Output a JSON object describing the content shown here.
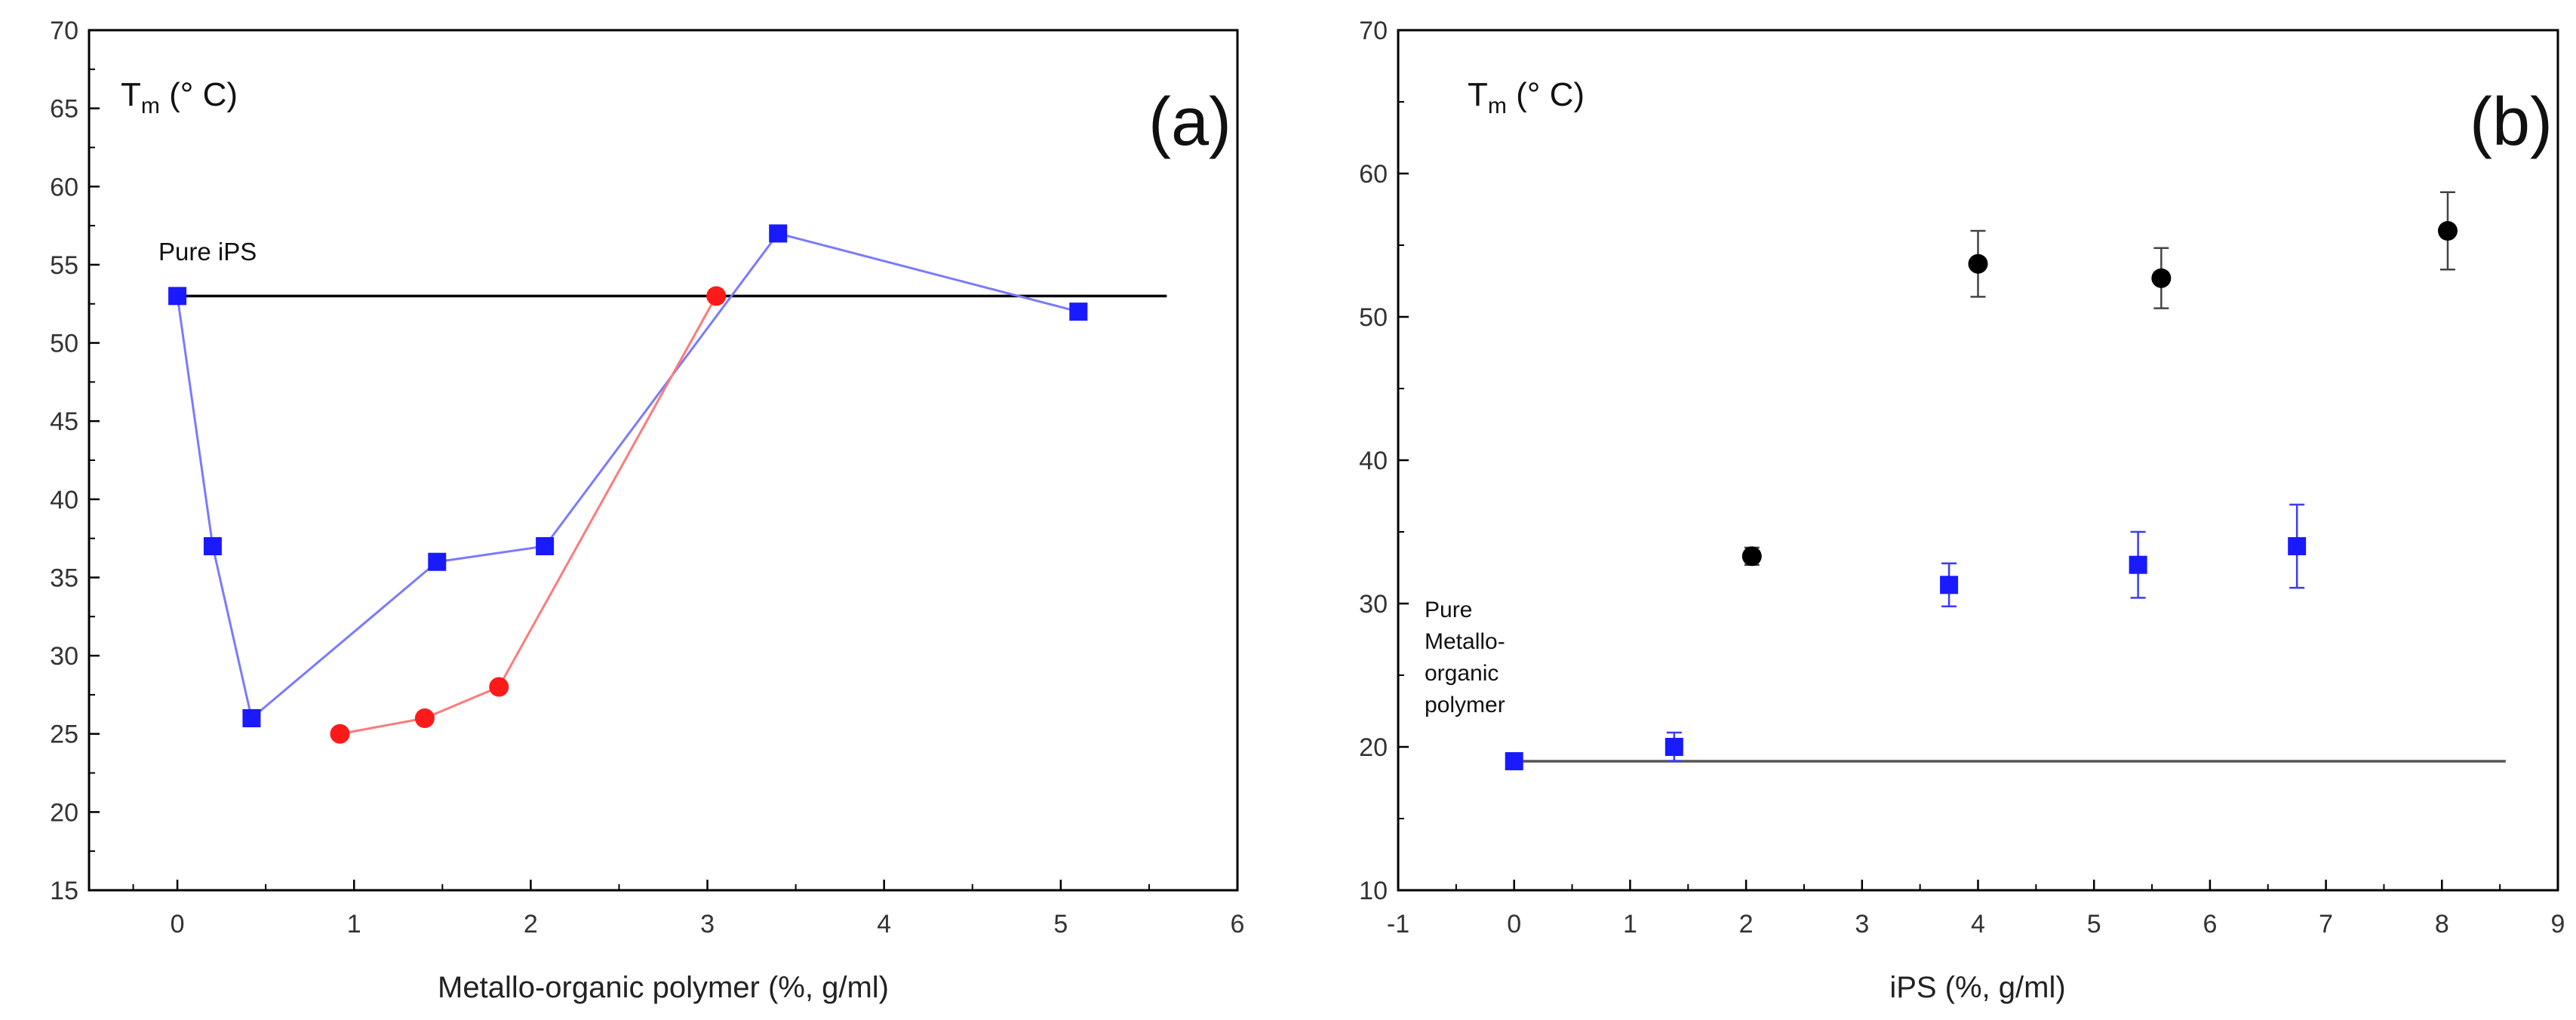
{
  "chart_data": [
    {
      "panel": "(a)",
      "type": "line",
      "ylabel_symbol": "T",
      "ylabel_subscript": "m",
      "ylabel_unit": " (° C)",
      "xlabel": "Metallo-organic polymer (%, g/ml)",
      "xlim": [
        -0.5,
        6
      ],
      "ylim": [
        15,
        70
      ],
      "xticks": [
        "0",
        "1",
        "2",
        "3",
        "4",
        "5",
        "6"
      ],
      "yticks": [
        "15",
        "20",
        "25",
        "30",
        "35",
        "40",
        "45",
        "50",
        "55",
        "60",
        "65",
        "70"
      ],
      "reference_line": {
        "label": "Pure iPS",
        "y": 53,
        "x_range": [
          0,
          5.6
        ],
        "color": "#000000"
      },
      "series": [
        {
          "name": "blue squares",
          "marker": "square",
          "color": "#1a1aff",
          "line_color": "#7a7aff",
          "x": [
            0,
            0.2,
            0.42,
            1.47,
            2.08,
            3.4,
            5.1
          ],
          "y": [
            53,
            37,
            26,
            36,
            37,
            57,
            52
          ]
        },
        {
          "name": "red circles",
          "marker": "circle",
          "color": "#ff1a1a",
          "line_color": "#ff7a7a",
          "x": [
            0.92,
            1.4,
            1.82,
            3.05
          ],
          "y": [
            25,
            26,
            28,
            53
          ]
        }
      ]
    },
    {
      "panel": "(b)",
      "type": "scatter",
      "ylabel_symbol": "T",
      "ylabel_subscript": "m",
      "ylabel_unit": " (° C)",
      "xlabel": "iPS (%, g/ml)",
      "xlim": [
        -1,
        9
      ],
      "ylim": [
        10,
        70
      ],
      "xticks": [
        "-1",
        "0",
        "1",
        "2",
        "3",
        "4",
        "5",
        "6",
        "7",
        "8",
        "9"
      ],
      "yticks": [
        "10",
        "20",
        "30",
        "40",
        "50",
        "60",
        "70"
      ],
      "reference_line": {
        "label": [
          "Pure",
          "Metallo-",
          "organic",
          "polymer"
        ],
        "y": 19,
        "x_range": [
          0,
          8.55
        ],
        "color": "#555555"
      },
      "series": [
        {
          "name": "black circles",
          "marker": "circle",
          "color": "#000000",
          "error_color": "#444444",
          "x": [
            2.05,
            4.0,
            5.58,
            8.05
          ],
          "y": [
            33.3,
            53.7,
            52.7,
            56.0
          ],
          "err": [
            0.6,
            2.3,
            2.1,
            2.7
          ]
        },
        {
          "name": "blue squares",
          "marker": "square",
          "color": "#1a1aff",
          "error_color": "#3a3aff",
          "x": [
            0,
            1.38,
            3.75,
            5.38,
            6.75
          ],
          "y": [
            19.0,
            20.0,
            31.3,
            32.7,
            34.0
          ],
          "err": [
            0,
            1.0,
            1.5,
            2.3,
            2.9
          ]
        }
      ]
    }
  ]
}
